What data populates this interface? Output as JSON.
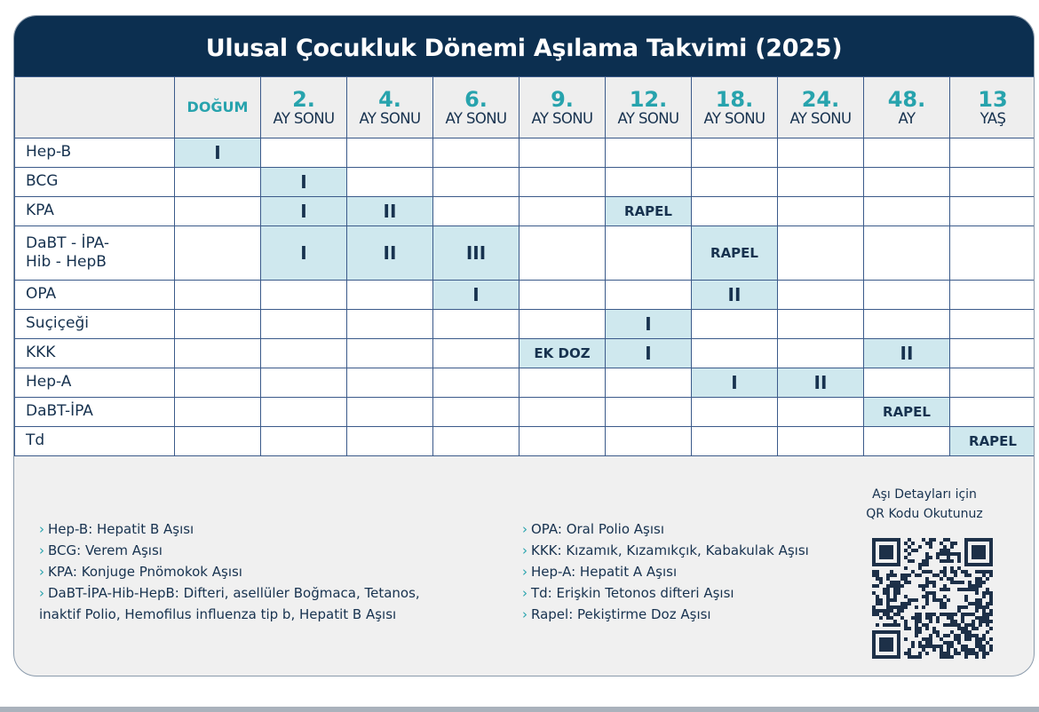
{
  "title": "Ulusal Çocukluk Dönemi Aşılama Takvimi (2025)",
  "columns": [
    {
      "num": "",
      "sub": "DOĞUM"
    },
    {
      "num": "2.",
      "sub": "AY SONU"
    },
    {
      "num": "4.",
      "sub": "AY SONU"
    },
    {
      "num": "6.",
      "sub": "AY SONU"
    },
    {
      "num": "9.",
      "sub": "AY SONU"
    },
    {
      "num": "12.",
      "sub": "AY SONU"
    },
    {
      "num": "18.",
      "sub": "AY SONU"
    },
    {
      "num": "24.",
      "sub": "AY SONU"
    },
    {
      "num": "48.",
      "sub": "AY"
    },
    {
      "num": "13",
      "sub": "YAŞ"
    }
  ],
  "rows": [
    {
      "label": "Hep-B",
      "cells": [
        "I",
        "",
        "",
        "",
        "",
        "",
        "",
        "",
        "",
        ""
      ]
    },
    {
      "label": "BCG",
      "cells": [
        "",
        "I",
        "",
        "",
        "",
        "",
        "",
        "",
        "",
        ""
      ]
    },
    {
      "label": "KPA",
      "cells": [
        "",
        "I",
        "II",
        "",
        "",
        "RAPEL",
        "",
        "",
        "",
        ""
      ]
    },
    {
      "label": "DaBT - İPA-\nHib - HepB",
      "cells": [
        "",
        "I",
        "II",
        "III",
        "",
        "",
        "RAPEL",
        "",
        "",
        ""
      ]
    },
    {
      "label": "OPA",
      "cells": [
        "",
        "",
        "",
        "I",
        "",
        "",
        "II",
        "",
        "",
        ""
      ]
    },
    {
      "label": "Suçiçeği",
      "cells": [
        "",
        "",
        "",
        "",
        "",
        "I",
        "",
        "",
        "",
        ""
      ]
    },
    {
      "label": "KKK",
      "cells": [
        "",
        "",
        "",
        "",
        "EK DOZ",
        "I",
        "",
        "",
        "II",
        ""
      ]
    },
    {
      "label": "Hep-A",
      "cells": [
        "",
        "",
        "",
        "",
        "",
        "",
        "I",
        "II",
        "",
        ""
      ]
    },
    {
      "label": "DaBT-İPA",
      "cells": [
        "",
        "",
        "",
        "",
        "",
        "",
        "",
        "",
        "RAPEL",
        ""
      ]
    },
    {
      "label": "Td",
      "cells": [
        "",
        "",
        "",
        "",
        "",
        "",
        "",
        "",
        "",
        "RAPEL"
      ]
    }
  ],
  "legend_left": [
    "Hep-B: Hepatit B Aşısı",
    "BCG: Verem Aşısı",
    "KPA: Konjuge Pnömokok Aşısı",
    "DaBT-İPA-Hib-HepB: Difteri, asellüler Boğmaca, Tetanos,\ninaktif Polio, Hemofilus influenza tip b, Hepatit B Aşısı"
  ],
  "legend_right": [
    "OPA: Oral Polio Aşısı",
    "KKK: Kızamık, Kızamıkçık, Kabakulak Aşısı",
    "Hep-A: Hepatit A Aşısı",
    "Td: Erişkin Tetonos difteri Aşısı",
    "Rapel: Pekiştirme Doz Aşısı"
  ],
  "qr": {
    "caption_1": "Aşı Detayları için",
    "caption_2": "QR Kodu Okutunuz",
    "icon": "qr-code-icon"
  },
  "colors": {
    "header": "#0c2f50",
    "accent": "#27a3ad",
    "highlight": "#cfe8ee",
    "text": "#17324f"
  }
}
